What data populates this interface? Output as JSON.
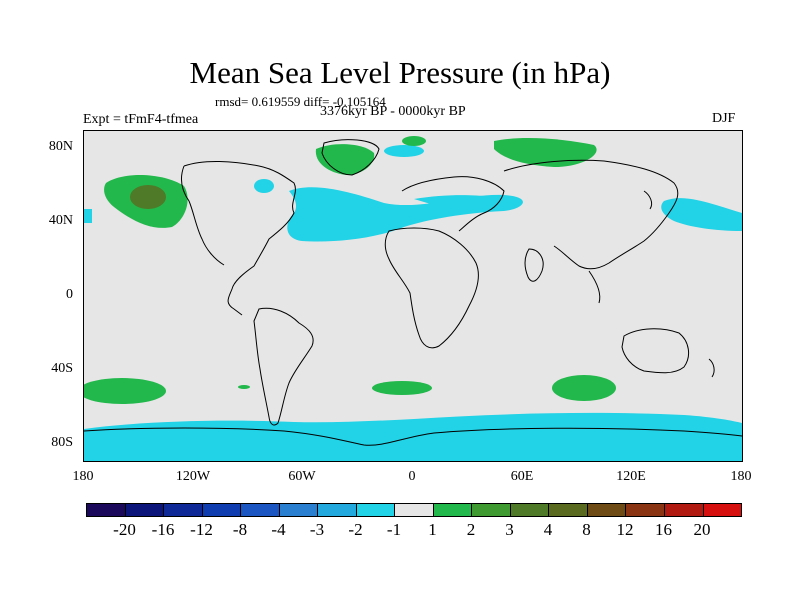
{
  "title": "Mean Sea Level Pressure (in hPa)",
  "stats": "rmsd= 0.619559 diff= -0.105164",
  "experiment": "Expt = tFmF4-tfmea",
  "period": "3376kyr BP - 0000kyr BP",
  "season": "DJF",
  "lat_labels": [
    "80N",
    "40N",
    "0",
    "40S",
    "80S"
  ],
  "lon_labels": [
    "180",
    "120W",
    "60W",
    "0",
    "60E",
    "120E",
    "180"
  ],
  "colorbar": {
    "colors": [
      "#1b0a5c",
      "#0c157a",
      "#0f2a96",
      "#103db0",
      "#1b56c2",
      "#2b7fd1",
      "#24a9df",
      "#22d2e6",
      "#e6e6e6",
      "#22b84c",
      "#3f9a32",
      "#4f7a28",
      "#5a6a1f",
      "#6e4a14",
      "#8a3414",
      "#b01a10",
      "#d60f0f"
    ],
    "labels": [
      "-20",
      "-16",
      "-12",
      "-8",
      "-4",
      "-3",
      "-2",
      "-1",
      "1",
      "2",
      "3",
      "4",
      "8",
      "12",
      "16",
      "20"
    ]
  }
}
